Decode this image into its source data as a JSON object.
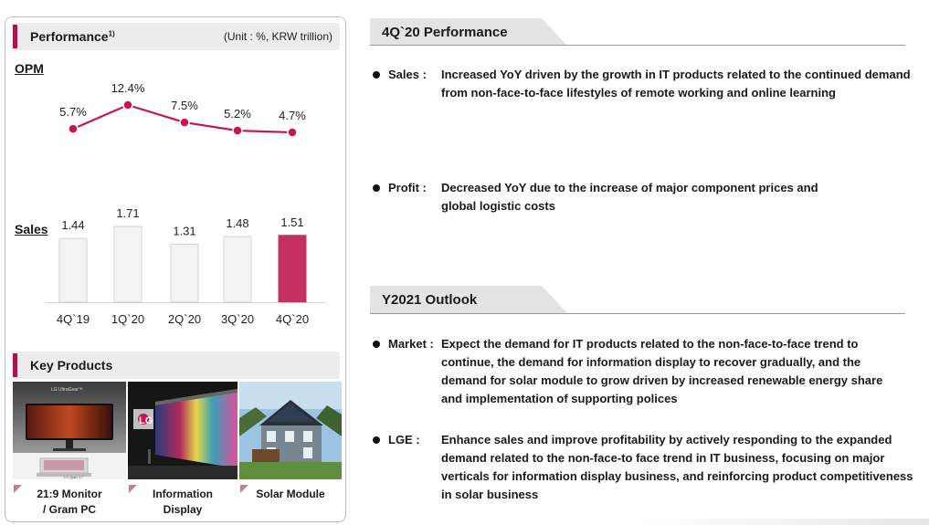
{
  "left": {
    "performance": {
      "title": "Performance",
      "superscript": "1)",
      "unit": "(Unit : %, KRW trillion)"
    },
    "opm_label": "OPM",
    "sales_label": "Sales",
    "key_products": {
      "title": "Key Products",
      "items": [
        {
          "label_line1": "21:9 Monitor",
          "label_line2": "/ Gram PC",
          "image_text1": "LG UltraGear™",
          "image_text2": "LG gram 17"
        },
        {
          "label_line1": "Information",
          "label_line2": "Display",
          "image_text1": "LG"
        },
        {
          "label_line1": "Solar Module",
          "label_line2": ""
        }
      ]
    }
  },
  "chart_data": [
    {
      "type": "line",
      "name": "OPM",
      "categories": [
        "4Q`19",
        "1Q`20",
        "2Q`20",
        "3Q`20",
        "4Q`20"
      ],
      "values": [
        5.7,
        12.4,
        7.5,
        5.2,
        4.7
      ],
      "value_labels": [
        "5.7%",
        "12.4%",
        "7.5%",
        "5.2%",
        "4.7%"
      ],
      "color": "#c8154f"
    },
    {
      "type": "bar",
      "name": "Sales",
      "categories": [
        "4Q`19",
        "1Q`20",
        "2Q`20",
        "3Q`20",
        "4Q`20"
      ],
      "values": [
        1.44,
        1.71,
        1.31,
        1.48,
        1.51
      ],
      "value_labels": [
        "1.44",
        "1.71",
        "1.31",
        "1.48",
        "1.51"
      ],
      "bar_color": "#f3f3f3",
      "highlight_color": "#c33061",
      "highlight_index": 4
    }
  ],
  "right": {
    "performance_section": {
      "title": "4Q`20 Performance",
      "bullets": [
        {
          "label": "Sales :",
          "text": "Increased YoY driven by the growth in IT products related to the continued demand from non-face-to-face lifestyles of remote working and online learning"
        },
        {
          "label": "Profit :",
          "text": "Decreased YoY due to the increase of major component prices and global logistic costs"
        }
      ]
    },
    "outlook_section": {
      "title": "Y2021 Outlook",
      "bullets": [
        {
          "label": "Market :",
          "text": "Expect the demand for IT products related to the non-face-to-face trend to continue, the demand for information display to recover gradually, and the demand for solar module to grow driven by increased renewable energy share and implementation of supporting polices"
        },
        {
          "label": "LGE :",
          "text": "Enhance sales and improve profitability by actively responding to the expanded demand related to the non-face-to face trend in IT business, focusing on major verticals for information display business, and reinforcing product competitiveness in solar business"
        }
      ]
    }
  }
}
